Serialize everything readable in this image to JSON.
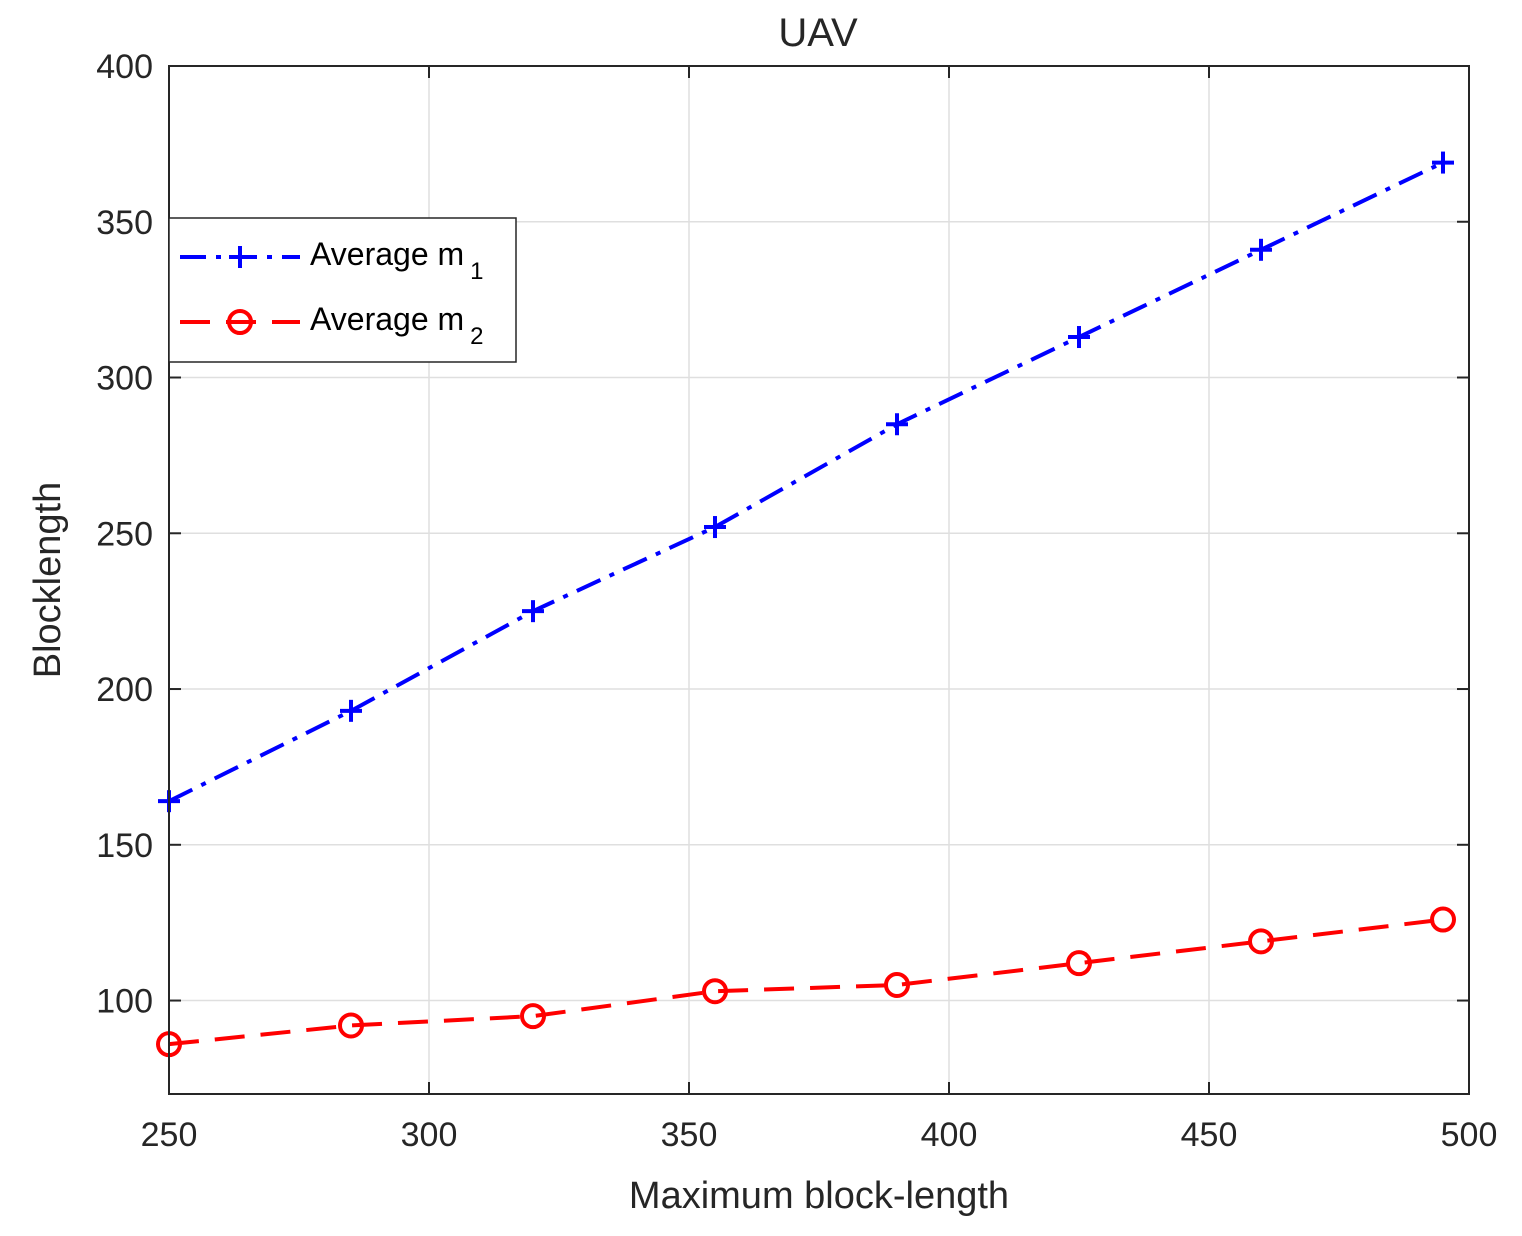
{
  "chart_data": {
    "type": "line",
    "title": "UAV",
    "xlabel": "Maximum block-length",
    "ylabel": "Blocklength",
    "xlim": [
      250,
      500
    ],
    "ylim": [
      70,
      400
    ],
    "xticks": [
      250,
      300,
      350,
      400,
      450,
      500
    ],
    "yticks": [
      100,
      150,
      200,
      250,
      300,
      350,
      400
    ],
    "xtick_labels": [
      "250",
      "300",
      "350",
      "400",
      "450",
      "500"
    ],
    "ytick_labels": [
      "100",
      "150",
      "200",
      "250",
      "300",
      "350",
      "400"
    ],
    "grid": true,
    "legend_position": "top-left",
    "x": [
      250,
      285,
      320,
      355,
      390,
      425,
      460,
      495
    ],
    "series": [
      {
        "name": "Average m",
        "subscript": "1",
        "color": "#0000ff",
        "marker": "plus",
        "line_style": "dash-dot",
        "values": [
          164,
          193,
          225,
          252,
          285,
          313,
          341,
          369
        ]
      },
      {
        "name": "Average m",
        "subscript": "2",
        "color": "#ff0000",
        "marker": "circle",
        "line_style": "dashed",
        "values": [
          86,
          92,
          95,
          103,
          105,
          112,
          119,
          126
        ]
      }
    ]
  }
}
